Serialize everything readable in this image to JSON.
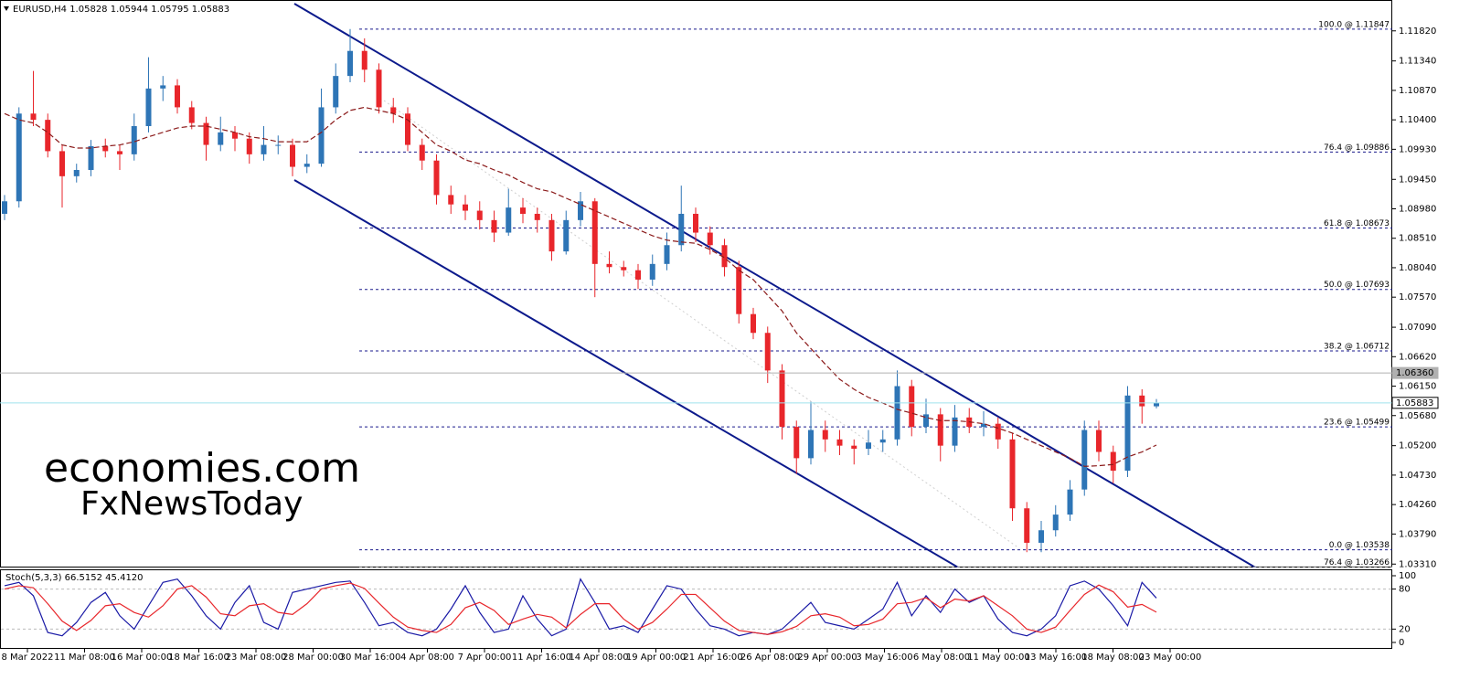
{
  "chart_data": [
    {
      "type": "candlestick",
      "title": "EURUSD,H4 1.05828 1.05944 1.05795 1.05883",
      "ylim": [
        1.0327,
        1.1205
      ],
      "yticks": [
        {
          "value": 1.1182,
          "label": "1.11820"
        },
        {
          "value": 1.1134,
          "label": "1.11340"
        },
        {
          "value": 1.1087,
          "label": "1.10870"
        },
        {
          "value": 1.104,
          "label": "1.10400"
        },
        {
          "value": 1.0993,
          "label": "1.09930"
        },
        {
          "value": 1.0945,
          "label": "1.09450"
        },
        {
          "value": 1.0898,
          "label": "1.08980"
        },
        {
          "value": 1.0851,
          "label": "1.08510"
        },
        {
          "value": 1.0804,
          "label": "1.08040"
        },
        {
          "value": 1.0757,
          "label": "1.07570"
        },
        {
          "value": 1.0709,
          "label": "1.07090"
        },
        {
          "value": 1.0662,
          "label": "1.06620"
        },
        {
          "value": 1.0615,
          "label": "1.06150"
        },
        {
          "value": 1.0568,
          "label": "1.05680"
        },
        {
          "value": 1.052,
          "label": "1.05200"
        },
        {
          "value": 1.0473,
          "label": "1.04730"
        },
        {
          "value": 1.0426,
          "label": "1.04260"
        },
        {
          "value": 1.0379,
          "label": "1.03790"
        },
        {
          "value": 1.0331,
          "label": "1.03310"
        }
      ],
      "up_color": "#2e75b6",
      "down_color": "#e8262b",
      "open": [
        1.089,
        1.091,
        1.105,
        1.104,
        1.099,
        1.095,
        1.096,
        1.0998,
        1.099,
        1.0985,
        1.103,
        1.109,
        1.1095,
        1.106,
        1.1035,
        1.1,
        1.102,
        1.101,
        1.0985,
        1.1,
        1.1,
        1.0965,
        1.097,
        1.106,
        1.111,
        1.115,
        1.112,
        1.106,
        1.105,
        1.1,
        1.0975,
        1.092,
        1.0905,
        1.0895,
        1.088,
        1.086,
        1.09,
        1.089,
        1.088,
        1.083,
        1.088,
        1.091,
        1.081,
        1.0805,
        1.08,
        1.0785,
        1.081,
        1.084,
        1.089,
        1.086,
        1.084,
        1.0805,
        1.073,
        1.07,
        1.064,
        1.055,
        1.05,
        1.0545,
        1.053,
        1.052,
        1.0515,
        1.0525,
        1.053,
        1.0615,
        1.055,
        1.057,
        1.052,
        1.0565,
        1.055,
        1.0555,
        1.053,
        1.042,
        1.0365,
        1.0385,
        1.041,
        1.045,
        1.0545,
        1.051,
        1.048,
        1.06,
        1.05828
      ],
      "high": [
        1.092,
        1.106,
        1.1118,
        1.105,
        1.1,
        1.097,
        1.1008,
        1.101,
        1.1,
        1.105,
        1.114,
        1.111,
        1.1105,
        1.107,
        1.1045,
        1.1045,
        1.103,
        1.102,
        1.103,
        1.1015,
        1.101,
        1.0985,
        1.109,
        1.113,
        1.1185,
        1.117,
        1.113,
        1.1075,
        1.106,
        1.101,
        1.0985,
        1.0935,
        1.092,
        1.091,
        1.0895,
        1.093,
        1.0915,
        1.09,
        1.089,
        1.0895,
        1.0925,
        1.0915,
        1.083,
        1.0815,
        1.081,
        1.0825,
        1.086,
        1.0935,
        1.09,
        1.087,
        1.085,
        1.0815,
        1.074,
        1.071,
        1.065,
        1.056,
        1.059,
        1.056,
        1.0545,
        1.053,
        1.0545,
        1.0545,
        1.064,
        1.0625,
        1.0595,
        1.058,
        1.0585,
        1.058,
        1.0575,
        1.0565,
        1.054,
        1.043,
        1.04,
        1.0425,
        1.0465,
        1.056,
        1.056,
        1.052,
        1.0615,
        1.061,
        1.05944
      ],
      "low": [
        1.088,
        1.09,
        1.103,
        1.098,
        1.09,
        1.094,
        1.095,
        1.098,
        1.096,
        1.0975,
        1.102,
        1.107,
        1.105,
        1.1025,
        1.0975,
        1.099,
        1.099,
        1.097,
        1.0975,
        1.0985,
        1.095,
        1.0955,
        1.0965,
        1.105,
        1.11,
        1.11,
        1.105,
        1.1035,
        1.099,
        1.096,
        1.0905,
        1.089,
        1.088,
        1.0865,
        1.0845,
        1.0855,
        1.0875,
        1.086,
        1.0815,
        1.0825,
        1.087,
        1.0757,
        1.0795,
        1.079,
        1.077,
        1.0775,
        1.08,
        1.083,
        1.0845,
        1.0825,
        1.079,
        1.0715,
        1.069,
        1.062,
        1.053,
        1.0475,
        1.049,
        1.051,
        1.0505,
        1.049,
        1.0505,
        1.051,
        1.052,
        1.0535,
        1.054,
        1.0495,
        1.051,
        1.054,
        1.0535,
        1.0515,
        1.04,
        1.035,
        1.035,
        1.0375,
        1.04,
        1.044,
        1.0495,
        1.046,
        1.047,
        1.0555,
        1.05795
      ],
      "close": [
        1.091,
        1.105,
        1.104,
        1.099,
        1.095,
        1.096,
        1.0998,
        1.099,
        1.0985,
        1.103,
        1.109,
        1.1095,
        1.106,
        1.1035,
        1.1,
        1.102,
        1.101,
        1.0985,
        1.1,
        1.1,
        1.0965,
        1.097,
        1.106,
        1.111,
        1.115,
        1.112,
        1.106,
        1.105,
        1.1,
        1.0975,
        1.092,
        1.0905,
        1.0895,
        1.088,
        1.086,
        1.09,
        1.089,
        1.088,
        1.083,
        1.088,
        1.091,
        1.081,
        1.0805,
        1.08,
        1.0785,
        1.081,
        1.084,
        1.089,
        1.086,
        1.084,
        1.0805,
        1.073,
        1.07,
        1.064,
        1.055,
        1.05,
        1.0545,
        1.053,
        1.052,
        1.0515,
        1.0525,
        1.053,
        1.0615,
        1.055,
        1.057,
        1.052,
        1.0565,
        1.055,
        1.0555,
        1.053,
        1.042,
        1.0365,
        1.0385,
        1.041,
        1.045,
        1.0545,
        1.051,
        1.048,
        1.06,
        1.05828,
        1.05883
      ],
      "ma": {
        "color": "#8b1a1a",
        "values": [
          1.105,
          1.104,
          1.1035,
          1.102,
          1.1,
          1.0995,
          1.0995,
          1.0998,
          1.1,
          1.1005,
          1.1013,
          1.102,
          1.1027,
          1.103,
          1.103,
          1.1025,
          1.102,
          1.1013,
          1.101,
          1.1005,
          1.1005,
          1.1005,
          1.102,
          1.104,
          1.1055,
          1.106,
          1.1055,
          1.105,
          1.104,
          1.102,
          1.1,
          1.099,
          1.0976,
          1.097,
          1.096,
          1.0952,
          1.094,
          1.093,
          1.0925,
          1.0915,
          1.0905,
          1.0895,
          1.0885,
          1.0875,
          1.0865,
          1.0855,
          1.0848,
          1.0845,
          1.0843,
          1.0833,
          1.082,
          1.08,
          1.0785,
          1.076,
          1.0735,
          1.07,
          1.0675,
          1.065,
          1.0626,
          1.061,
          1.0597,
          1.0588,
          1.0578,
          1.0572,
          1.0565,
          1.056,
          1.056,
          1.0558,
          1.0555,
          1.0548,
          1.054,
          1.053,
          1.052,
          1.051,
          1.05,
          1.0487,
          1.0488,
          1.049,
          1.0502,
          1.051,
          1.0521
        ]
      },
      "levels": [
        {
          "value": 1.11847,
          "label": "100.0 @ 1.11847",
          "color": "#1a1a8c"
        },
        {
          "value": 1.09886,
          "label": "76.4 @ 1.09886",
          "color": "#1a1a8c"
        },
        {
          "value": 1.08673,
          "label": "61.8 @ 1.08673",
          "color": "#1a1a8c"
        },
        {
          "value": 1.07693,
          "label": "50.0 @ 1.07693",
          "color": "#1a1a8c"
        },
        {
          "value": 1.06712,
          "label": "38.2 @ 1.06712",
          "color": "#1a1a8c"
        },
        {
          "value": 1.05499,
          "label": "23.6 @ 1.05499",
          "color": "#1a1a8c"
        },
        {
          "value": 1.03538,
          "label": "0.0 @ 1.03538",
          "color": "#1a1a8c"
        },
        {
          "value": 1.03266,
          "label": "76.4 @ 1.03266",
          "color": "#9a9a9a"
        }
      ],
      "markers": [
        {
          "value": 1.0636,
          "label": "1.06360",
          "color": "#b0b0b0"
        },
        {
          "value": 1.05883,
          "label": "1.05883",
          "color": "#9fe3ee"
        }
      ],
      "watermark": [
        "economies.com",
        "FxNewsToday"
      ]
    },
    {
      "type": "line",
      "title": "Stoch(5,3,3) 66.5152 45.4120",
      "ylim": [
        0,
        100
      ],
      "yticks": [
        0,
        20,
        80,
        100
      ],
      "series": [
        {
          "color": "#1a1aa6",
          "values": [
            85,
            90,
            70,
            15,
            10,
            30,
            60,
            75,
            40,
            20,
            55,
            90,
            95,
            70,
            40,
            20,
            60,
            85,
            30,
            20,
            75,
            80,
            85,
            90,
            92,
            60,
            25,
            30,
            15,
            10,
            20,
            50,
            85,
            45,
            15,
            20,
            70,
            35,
            10,
            20,
            95,
            60,
            20,
            25,
            15,
            50,
            85,
            80,
            50,
            25,
            20,
            10,
            15,
            12,
            20,
            40,
            60,
            30,
            25,
            20,
            35,
            50,
            90,
            40,
            70,
            45,
            80,
            60,
            70,
            35,
            15,
            10,
            20,
            40,
            85,
            92,
            80,
            55,
            25,
            90,
            66.5152
          ]
        },
        {
          "color": "#e8262b",
          "values": [
            80,
            85,
            82,
            58,
            32,
            18,
            33,
            55,
            58,
            45,
            38,
            55,
            80,
            85,
            68,
            43,
            40,
            55,
            58,
            45,
            42,
            58,
            80,
            85,
            89,
            81,
            59,
            38,
            23,
            18,
            15,
            27,
            52,
            60,
            48,
            27,
            35,
            42,
            38,
            22,
            42,
            58,
            58,
            35,
            20,
            30,
            50,
            72,
            72,
            52,
            32,
            18,
            15,
            12,
            16,
            24,
            40,
            43,
            38,
            25,
            27,
            35,
            58,
            60,
            67,
            52,
            65,
            62,
            70,
            55,
            40,
            20,
            15,
            23,
            48,
            72,
            86,
            76,
            53,
            57,
            45.412
          ]
        }
      ],
      "xlabels": [
        "8 Mar 2022",
        "11 Mar 08:00",
        "16 Mar 00:00",
        "18 Mar 16:00",
        "23 Mar 08:00",
        "28 Mar 00:00",
        "30 Mar 16:00",
        "4 Apr 08:00",
        "7 Apr 00:00",
        "11 Apr 16:00",
        "14 Apr 08:00",
        "19 Apr 00:00",
        "21 Apr 16:00",
        "26 Apr 08:00",
        "29 Apr 00:00",
        "3 May 16:00",
        "6 May 08:00",
        "11 May 00:00",
        "13 May 16:00",
        "18 May 08:00",
        "23 May 00:00"
      ]
    }
  ]
}
